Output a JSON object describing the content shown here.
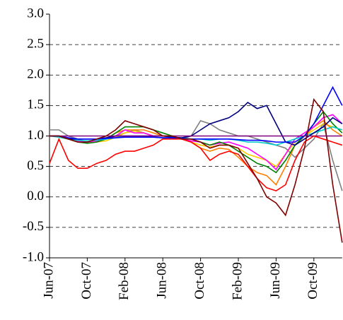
{
  "chart_data": {
    "type": "line",
    "categories": [
      "Jun-07",
      null,
      null,
      null,
      "Oct-07",
      null,
      null,
      null,
      "Feb-08",
      null,
      null,
      null,
      "Jun-08",
      null,
      null,
      null,
      "Oct-08",
      null,
      null,
      null,
      "Feb-09",
      null,
      null,
      null,
      "Jun-09",
      null,
      null,
      null,
      "Oct-09",
      null,
      null,
      null
    ],
    "ylim": [
      -1,
      3
    ],
    "yticks": [
      {
        "value": -1,
        "label": "-1.0"
      },
      -0.5,
      {
        "value": 0,
        "label": "0.0"
      },
      0.5,
      {
        "value": 1,
        "label": "1.0"
      },
      1.5,
      {
        "value": 2,
        "label": "2.0"
      },
      2.5,
      {
        "value": 3,
        "label": "3.0"
      }
    ],
    "grid": true,
    "series": [
      {
        "color": "#808080",
        "values": [
          1.1,
          1.1,
          1.0,
          0.95,
          0.9,
          0.92,
          0.95,
          1.0,
          1.05,
          1.1,
          1.05,
          1.0,
          1.0,
          0.98,
          0.95,
          1.0,
          1.25,
          1.2,
          1.1,
          1.05,
          1.0,
          1.0,
          0.95,
          0.9,
          0.85,
          0.8,
          0.65,
          0.8,
          0.95,
          1.2,
          0.6,
          0.1
        ]
      },
      {
        "color": "#ffcc00",
        "values": [
          1.0,
          0.98,
          0.95,
          0.92,
          0.9,
          0.9,
          0.92,
          0.98,
          1.05,
          1.08,
          1.05,
          1.0,
          1.0,
          0.98,
          0.95,
          0.9,
          0.85,
          0.82,
          0.85,
          0.85,
          0.8,
          0.7,
          0.65,
          0.6,
          0.5,
          0.7,
          0.9,
          1.0,
          1.1,
          1.2,
          1.15,
          1.1
        ]
      },
      {
        "color": "#ff8000",
        "values": [
          1.0,
          1.0,
          0.95,
          0.9,
          0.9,
          0.92,
          0.95,
          1.05,
          1.1,
          1.1,
          1.1,
          1.05,
          1.0,
          1.0,
          0.95,
          0.9,
          0.8,
          0.75,
          0.8,
          0.78,
          0.65,
          0.5,
          0.4,
          0.35,
          0.2,
          0.5,
          0.85,
          1.0,
          1.15,
          1.25,
          1.1,
          1.0
        ]
      },
      {
        "color": "#ff00ff",
        "values": [
          1.0,
          1.0,
          0.95,
          0.92,
          0.9,
          0.92,
          0.95,
          1.0,
          1.1,
          1.05,
          1.05,
          1.0,
          1.0,
          0.98,
          0.95,
          0.92,
          0.9,
          0.85,
          0.88,
          0.9,
          0.85,
          0.8,
          0.7,
          0.6,
          0.45,
          0.7,
          0.95,
          1.05,
          1.15,
          1.3,
          1.35,
          1.2
        ]
      },
      {
        "color": "#008000",
        "values": [
          1.0,
          1.0,
          0.95,
          0.9,
          0.88,
          0.9,
          0.95,
          1.05,
          1.15,
          1.15,
          1.15,
          1.1,
          1.05,
          1.0,
          0.95,
          0.95,
          0.9,
          0.85,
          0.9,
          0.85,
          0.75,
          0.65,
          0.55,
          0.5,
          0.4,
          0.6,
          0.85,
          1.0,
          1.2,
          1.4,
          1.2,
          1.05
        ]
      },
      {
        "color": "#00cccc",
        "values": [
          1.0,
          0.98,
          0.95,
          0.93,
          0.92,
          0.93,
          0.95,
          0.97,
          1.0,
          1.0,
          1.0,
          0.98,
          0.97,
          0.97,
          0.97,
          0.95,
          0.95,
          0.93,
          0.95,
          0.95,
          0.93,
          0.9,
          0.9,
          0.88,
          0.85,
          0.9,
          0.95,
          1.0,
          1.05,
          1.1,
          1.15,
          1.1
        ]
      },
      {
        "color": "#000080",
        "values": [
          1.0,
          1.0,
          0.95,
          0.95,
          0.95,
          0.95,
          0.97,
          1.0,
          1.0,
          1.0,
          1.0,
          1.0,
          1.0,
          0.98,
          0.97,
          1.0,
          1.1,
          1.2,
          1.25,
          1.3,
          1.4,
          1.55,
          1.45,
          1.5,
          1.2,
          0.9,
          0.85,
          0.95,
          1.05,
          1.15,
          1.3,
          1.2
        ]
      },
      {
        "color": "#0000ff",
        "values": [
          1.0,
          1.0,
          0.97,
          0.95,
          0.95,
          0.95,
          0.96,
          0.97,
          0.98,
          0.98,
          0.98,
          0.98,
          0.97,
          0.97,
          0.96,
          0.95,
          0.95,
          0.95,
          0.95,
          0.95,
          0.94,
          0.93,
          0.93,
          0.92,
          0.9,
          0.9,
          0.9,
          1.0,
          1.2,
          1.5,
          1.8,
          1.5
        ]
      },
      {
        "color": "#800080",
        "values": [
          1.0,
          1.0,
          1.0,
          1.0,
          1.0,
          1.0,
          1.0,
          1.0,
          1.0,
          1.0,
          1.0,
          1.0,
          1.0,
          1.0,
          1.0,
          1.0,
          1.0,
          1.0,
          1.0,
          1.0,
          1.0,
          1.0,
          1.0,
          1.0,
          1.0,
          1.0,
          1.0,
          1.0,
          1.0,
          1.0,
          1.0,
          1.0
        ]
      },
      {
        "color": "#ff0000",
        "values": [
          0.55,
          0.95,
          0.6,
          0.47,
          0.47,
          0.55,
          0.6,
          0.7,
          0.75,
          0.75,
          0.8,
          0.85,
          0.95,
          0.95,
          0.95,
          0.9,
          0.8,
          0.6,
          0.7,
          0.75,
          0.7,
          0.5,
          0.3,
          0.15,
          0.1,
          0.2,
          0.6,
          0.9,
          1.0,
          0.95,
          0.9,
          0.85
        ]
      },
      {
        "color": "#800000",
        "values": [
          1.0,
          1.0,
          0.95,
          0.9,
          0.9,
          0.95,
          1.0,
          1.1,
          1.25,
          1.2,
          1.15,
          1.1,
          1.0,
          1.0,
          0.95,
          0.95,
          0.9,
          0.8,
          0.85,
          0.85,
          0.8,
          0.55,
          0.3,
          0.0,
          -0.1,
          -0.3,
          0.2,
          0.8,
          1.6,
          1.4,
          0.2,
          -0.75
        ]
      }
    ]
  }
}
